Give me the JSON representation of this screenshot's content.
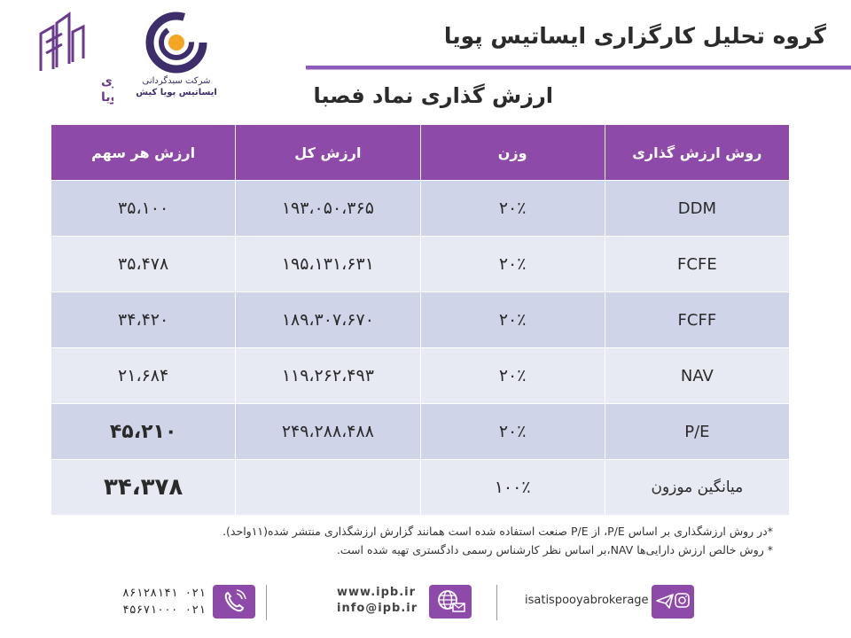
{
  "header": {
    "title": "گروه تحلیل کارگزاری ایساتیس پویا",
    "logo_left_line1": "کارگزاری",
    "logo_left_line2": "ایساتیس پویا",
    "logo_mid_line1": "شرکت سبدگردانی",
    "logo_mid_line2": "ایساتیس پویا کیش",
    "accent_color": "#8e4aa8"
  },
  "page_title": "ارزش گذاری نماد فصبا",
  "table": {
    "headers": [
      "روش ارزش گذاری",
      "وزن",
      "ارزش کل",
      "ارزش هر سهم"
    ],
    "rows": [
      {
        "method": "DDM",
        "weight": "۲۰٪",
        "total": "۱۹۳،۰۵۰،۳۶۵",
        "per_share": "۳۵،۱۰۰"
      },
      {
        "method": "FCFE",
        "weight": "۲۰٪",
        "total": "۱۹۵،۱۳۱،۶۳۱",
        "per_share": "۳۵،۴۷۸"
      },
      {
        "method": "FCFF",
        "weight": "۲۰٪",
        "total": "۱۸۹،۳۰۷،۶۷۰",
        "per_share": "۳۴،۴۲۰"
      },
      {
        "method": "NAV",
        "weight": "۲۰٪",
        "total": "۱۱۹،۲۶۲،۴۹۳",
        "per_share": "۲۱،۶۸۴"
      },
      {
        "method": "P/E",
        "weight": "۲۰٪",
        "total": "۲۴۹،۲۸۸،۴۸۸",
        "per_share": "۴۵،۲۱۰"
      },
      {
        "method": "میانگین موزون",
        "weight": "۱۰۰٪",
        "total": "",
        "per_share": "۳۴،۳۷۸"
      }
    ]
  },
  "notes": [
    "*در روش ارزشگذاری بر اساس P/E، از P/E صنعت استفاده شده است همانند گزارش ارزشگذاری منتشر شده(۱۱واحد).",
    "* روش خالص ارزش دارایی‌ها NAV،بر اساس نظر کارشناس رسمی دادگستری تهیه شده است."
  ],
  "footer": {
    "phone1": "۰۲۱ ۸۶۱۲۸۱۴۱",
    "phone2": "۰۲۱ ۴۵۶۷۱۰۰۰",
    "website": "www.ipb.ir",
    "email": "info@ipb.ir",
    "social": "isatispooyabrokerage",
    "icons": [
      "phone-icon",
      "globe-email-icon",
      "telegram-instagram-icon"
    ]
  }
}
